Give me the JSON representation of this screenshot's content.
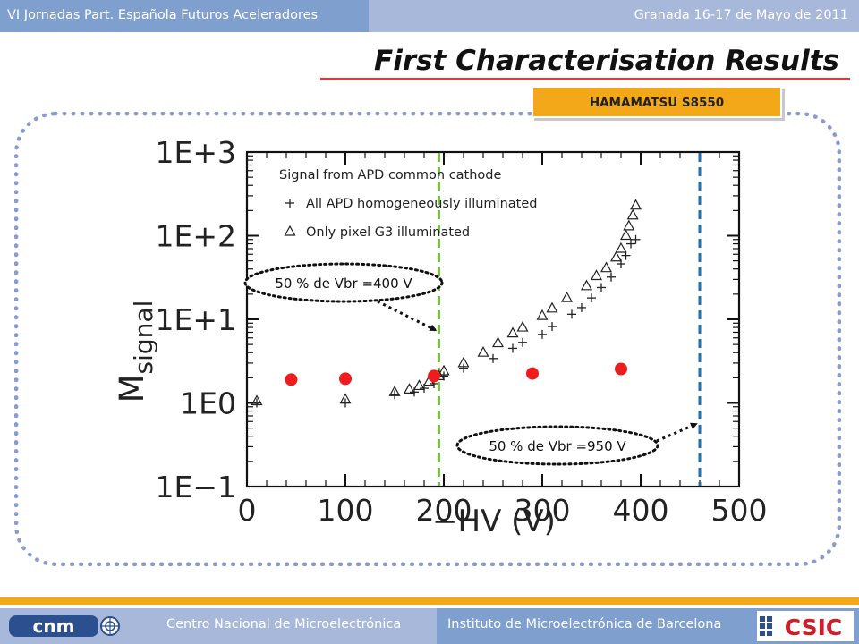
{
  "header": {
    "left_text": "VI Jornadas Part. Española Futuros Aceleradores",
    "right_text": "Granada 16-17 de Mayo de 2011"
  },
  "slide": {
    "title": "First Characterisation Results",
    "badge": "HAMAMATSU  S8550"
  },
  "footer": {
    "left_text": "Centro Nacional de Microelectrónica",
    "right_text": "Instituto de Microelectrónica de Barcelona",
    "logo_cnm_text": "cnm",
    "logo_csic_text": "CSIC"
  },
  "colors": {
    "header_dark": "#7f9fcf",
    "header_light": "#a8b8da",
    "accent_orange": "#f3a81a",
    "title_underline": "#e8343c",
    "red_points": "#ee1c1c",
    "green_line": "#7ac143",
    "blue_line": "#1c6fb8"
  },
  "chart_data": {
    "type": "scatter",
    "xlabel": "−HV (V)",
    "ylabel": "M",
    "ylabel_sub": "signal",
    "x_ticks": [
      "0",
      "100",
      "200",
      "300",
      "400",
      "500"
    ],
    "y_ticks": [
      "1E−1",
      "1E0",
      "1E+1",
      "1E+2",
      "1E+3"
    ],
    "xlim": [
      0,
      500
    ],
    "ylim": [
      0.1,
      1000
    ],
    "y_scale": "log",
    "grid": false,
    "legend_title": "Signal from APD common cathode",
    "series": [
      {
        "name": "All APD homogeneously illuminated",
        "marker": "plus",
        "points": [
          [
            10,
            1.0
          ],
          [
            100,
            1.0
          ],
          [
            150,
            1.25
          ],
          [
            170,
            1.35
          ],
          [
            180,
            1.5
          ],
          [
            190,
            1.7
          ],
          [
            200,
            2.1
          ],
          [
            220,
            2.6
          ],
          [
            250,
            3.4
          ],
          [
            270,
            4.5
          ],
          [
            280,
            5.3
          ],
          [
            300,
            6.6
          ],
          [
            310,
            8.2
          ],
          [
            330,
            11.5
          ],
          [
            340,
            13.8
          ],
          [
            350,
            18.0
          ],
          [
            360,
            24.0
          ],
          [
            370,
            32.0
          ],
          [
            380,
            46.0
          ],
          [
            385,
            58.0
          ],
          [
            390,
            80.0
          ],
          [
            395,
            90.0
          ]
        ]
      },
      {
        "name": "Only pixel G3 illuminated",
        "marker": "triangle",
        "points": [
          [
            10,
            1.05
          ],
          [
            100,
            1.1
          ],
          [
            150,
            1.35
          ],
          [
            165,
            1.45
          ],
          [
            175,
            1.6
          ],
          [
            185,
            1.8
          ],
          [
            195,
            2.1
          ],
          [
            200,
            2.4
          ],
          [
            220,
            3.0
          ],
          [
            240,
            4.0
          ],
          [
            255,
            5.2
          ],
          [
            270,
            6.8
          ],
          [
            280,
            8.0
          ],
          [
            300,
            11.0
          ],
          [
            310,
            13.5
          ],
          [
            325,
            18.0
          ],
          [
            345,
            25.0
          ],
          [
            355,
            33.0
          ],
          [
            365,
            41.0
          ],
          [
            375,
            55.0
          ],
          [
            380,
            70.0
          ],
          [
            385,
            100.0
          ],
          [
            388,
            130.0
          ],
          [
            392,
            175.0
          ],
          [
            395,
            230.0
          ]
        ]
      },
      {
        "name": "",
        "marker": "red-dot",
        "points": [
          [
            45,
            1.9
          ],
          [
            100,
            1.95
          ],
          [
            190,
            2.1
          ],
          [
            290,
            2.25
          ],
          [
            380,
            2.55
          ]
        ]
      }
    ],
    "vlines": [
      {
        "x": 195,
        "style": "dashed",
        "color": "green"
      },
      {
        "x": 460,
        "style": "dashed",
        "color": "blue"
      }
    ],
    "annotations": [
      {
        "text": "50 % de Vbr =400 V",
        "points_to_x": 195
      },
      {
        "text": "50 % de Vbr =950 V",
        "points_to_x": 460
      }
    ]
  }
}
